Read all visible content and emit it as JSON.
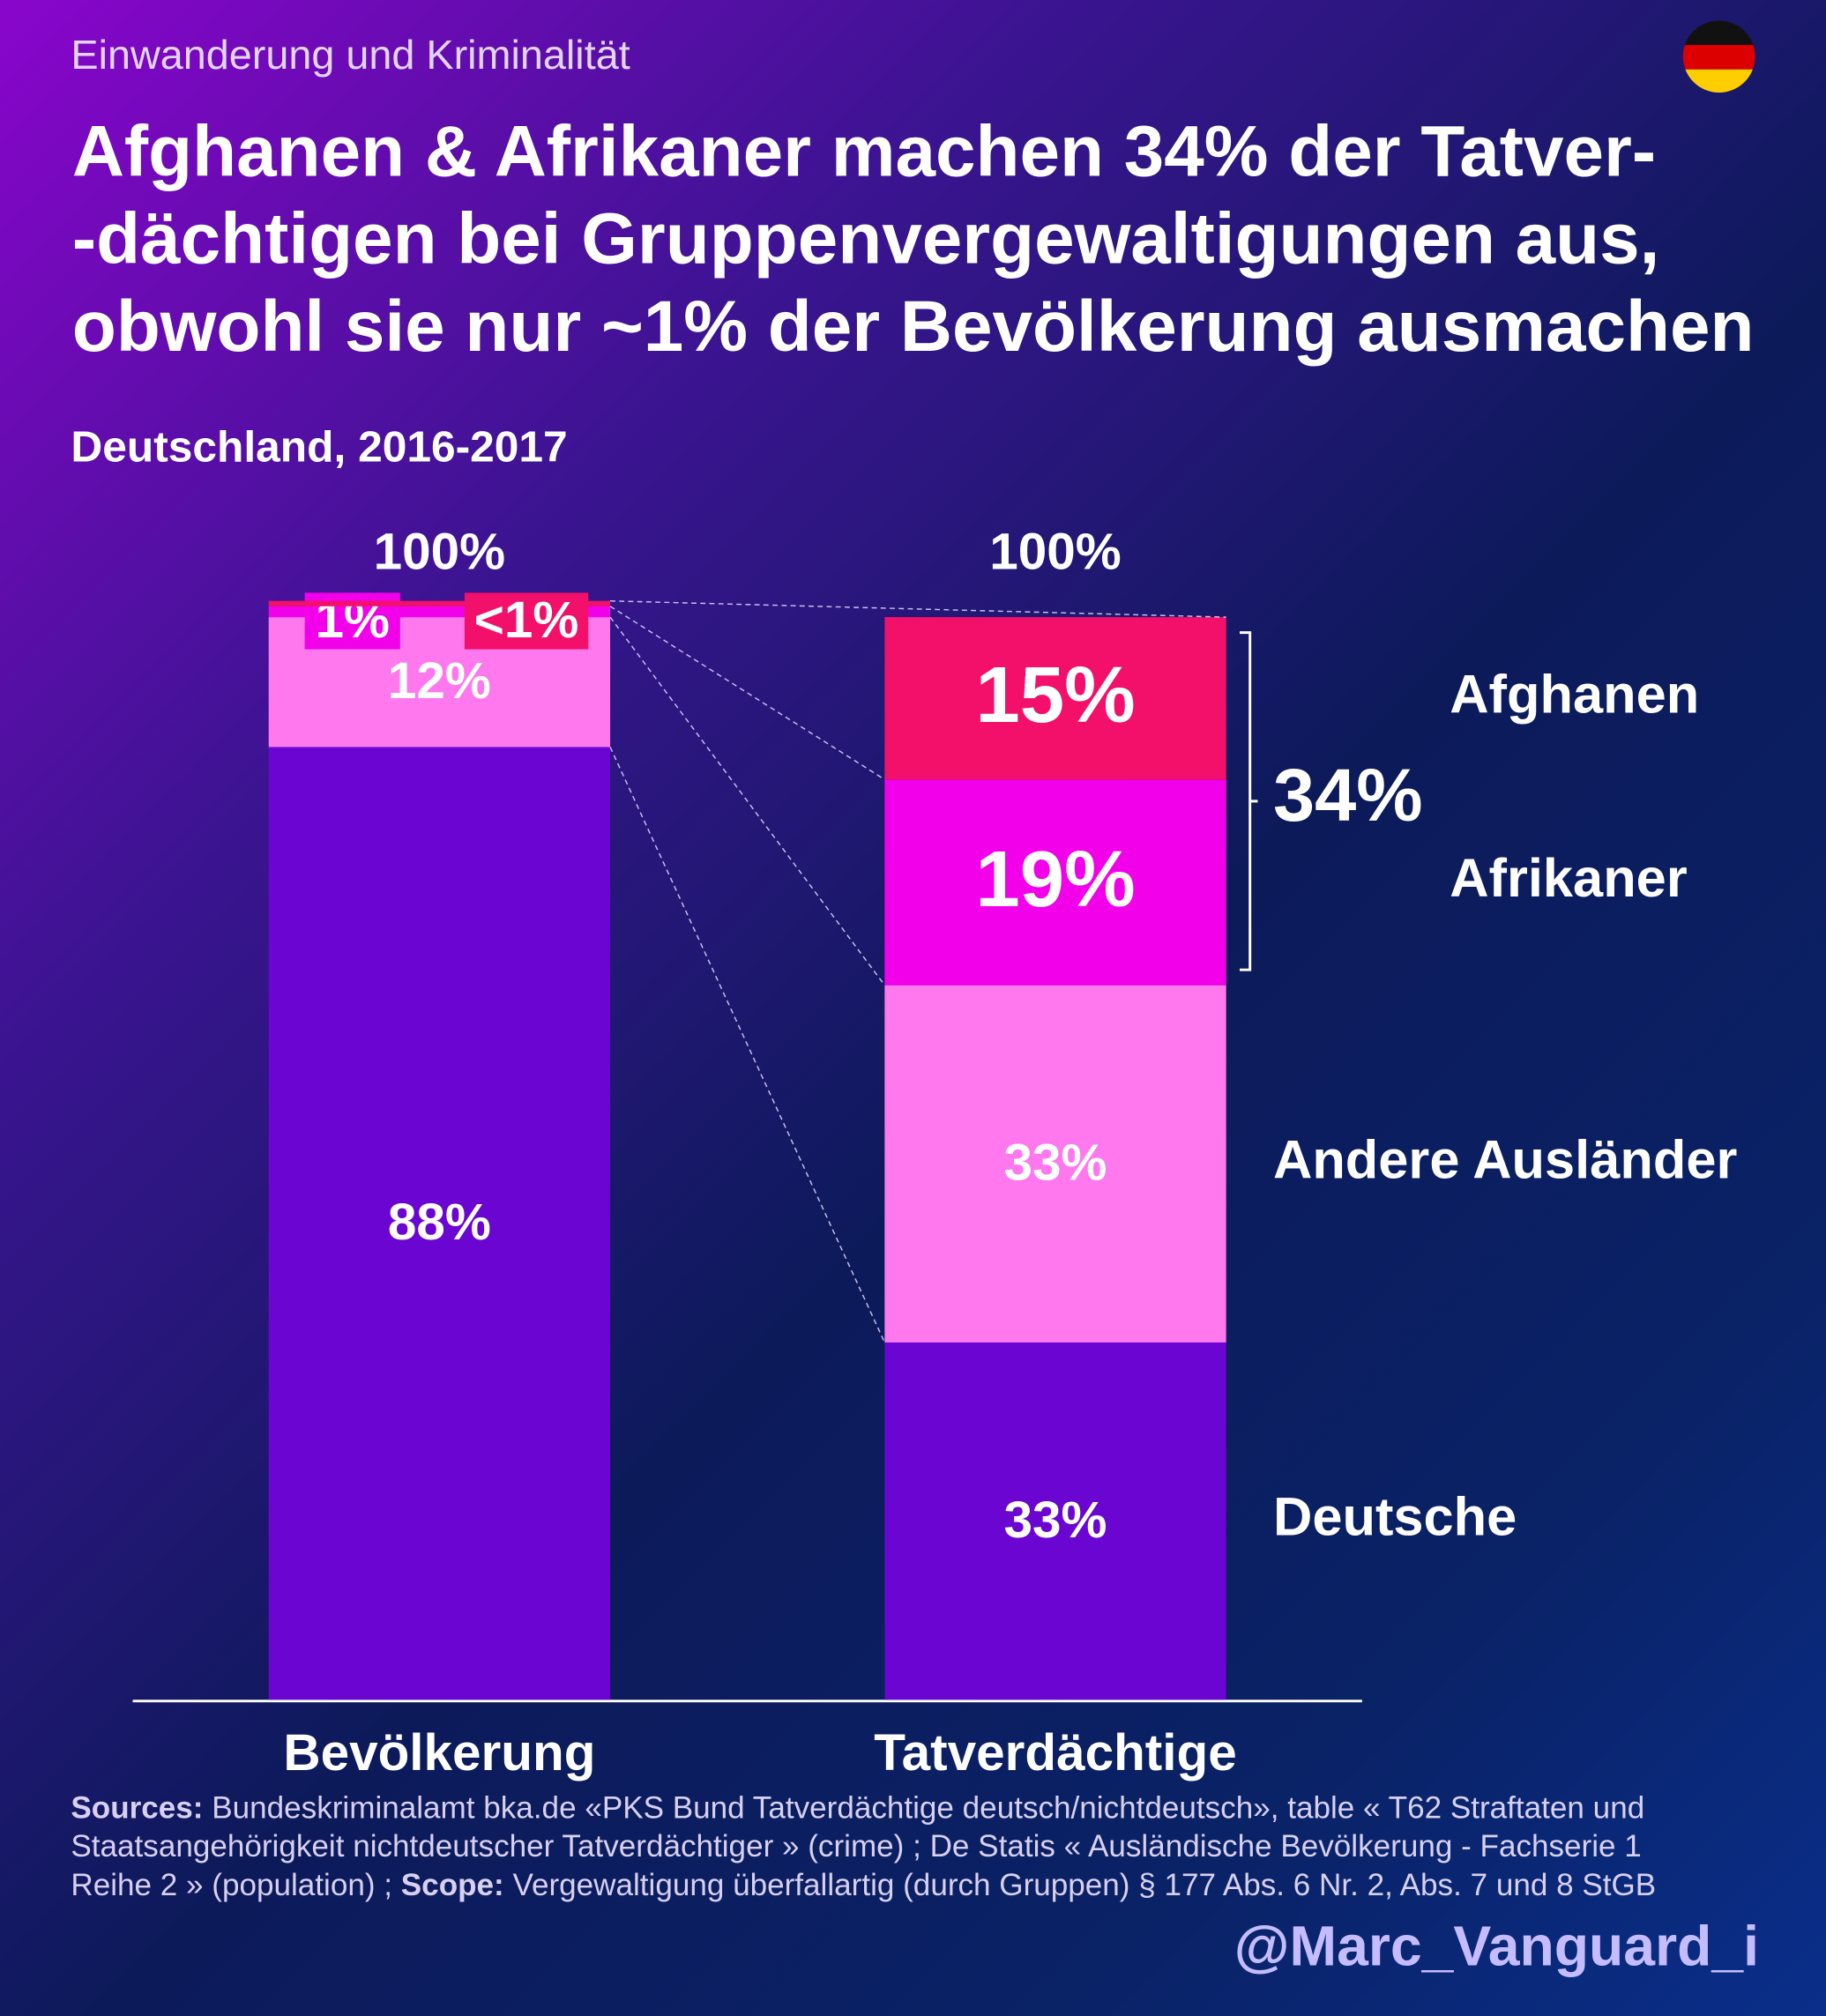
{
  "chart_data": {
    "type": "bar",
    "stacked": true,
    "kicker": "Einwanderung und Kriminalität",
    "title": [
      "Afghanen & Afrikaner machen 34% der Tatver-",
      "-dächtigen bei Gruppenvergewaltigungen aus,",
      "obwohl sie nur ~1% der Bevölkerung ausmachen"
    ],
    "subtitle": "Deutschland, 2016-2017",
    "categories": [
      "Bevölkerung",
      "Tatverdächtige"
    ],
    "total_labels": [
      "100%",
      "100%"
    ],
    "series": [
      {
        "name": "Deutsche",
        "color": "#6a05d2",
        "values": [
          88,
          33
        ],
        "value_labels": [
          "88%",
          "33%"
        ]
      },
      {
        "name": "Andere Ausländer",
        "color": "#ff78ee",
        "values": [
          12,
          33
        ],
        "value_labels": [
          "12%",
          "33%"
        ]
      },
      {
        "name": "Afrikaner",
        "color": "#f200ea",
        "values": [
          1,
          19
        ],
        "value_labels": [
          "1%",
          "19%"
        ]
      },
      {
        "name": "Afghanen",
        "color": "#f2106a",
        "values": [
          0.5,
          15
        ],
        "value_labels": [
          "<1%",
          "15%"
        ]
      }
    ],
    "bracket_label": "34%",
    "ylim": [
      0,
      100
    ],
    "source": {
      "label": "Sources:",
      "text": "Bundeskriminalamt bka.de «PKS Bund Tatverdächtige deutsch/nichtdeutsch», table « T62 Straftaten und Staatsangehörigkeit nichtdeutscher Tatverdächtiger » (crime) ; De Statis « Ausländische Bevölkerung - Fachserie 1 Reihe 2 » (population) ;",
      "scope_label": "Scope:",
      "scope_text": "Vergewaltigung überfallartig (durch Gruppen) § 177 Abs. 6 Nr. 2, Abs. 7 und 8 StGB"
    },
    "handle": "@Marc_Vanguard_i"
  }
}
